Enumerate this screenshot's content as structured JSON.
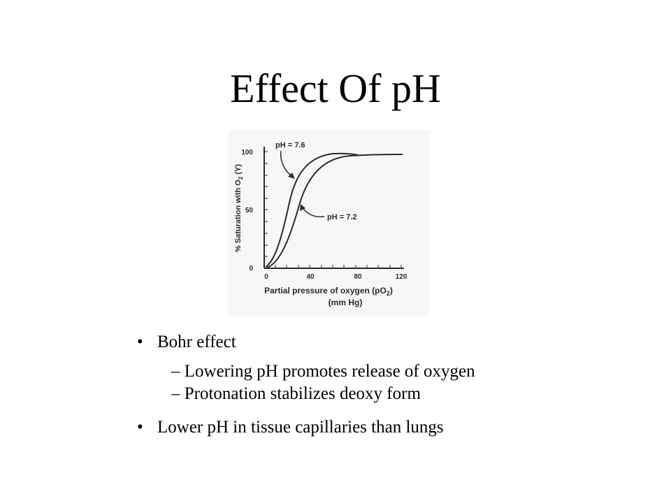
{
  "slide": {
    "title": "Effect Of pH"
  },
  "figure": {
    "y_axis_label": "% Saturation with O",
    "y_axis_label_sub": "2",
    "y_axis_label_tail": " (Y)",
    "x_axis_label_line1_pre": "Partial pressure of oxygen (pO",
    "x_axis_label_line1_sub": "2",
    "x_axis_label_line1_post": ")",
    "x_axis_label_line2": "(mm Hg)",
    "curve_labels": [
      "pH = 7.6",
      "pH = 7.2"
    ],
    "y_ticks": [
      "100",
      "50",
      "0"
    ],
    "x_ticks": [
      "0",
      "40",
      "80",
      "120"
    ],
    "ink_color": "#2a2a2a"
  },
  "bullets": {
    "marker": "•",
    "dash": "–",
    "items": [
      {
        "text": "Bohr effect",
        "subitems": [
          "Lowering pH promotes release of oxygen",
          "Protonation stabilizes deoxy form"
        ]
      },
      {
        "text": "Lower pH in tissue capillaries than lungs",
        "subitems": []
      }
    ]
  }
}
